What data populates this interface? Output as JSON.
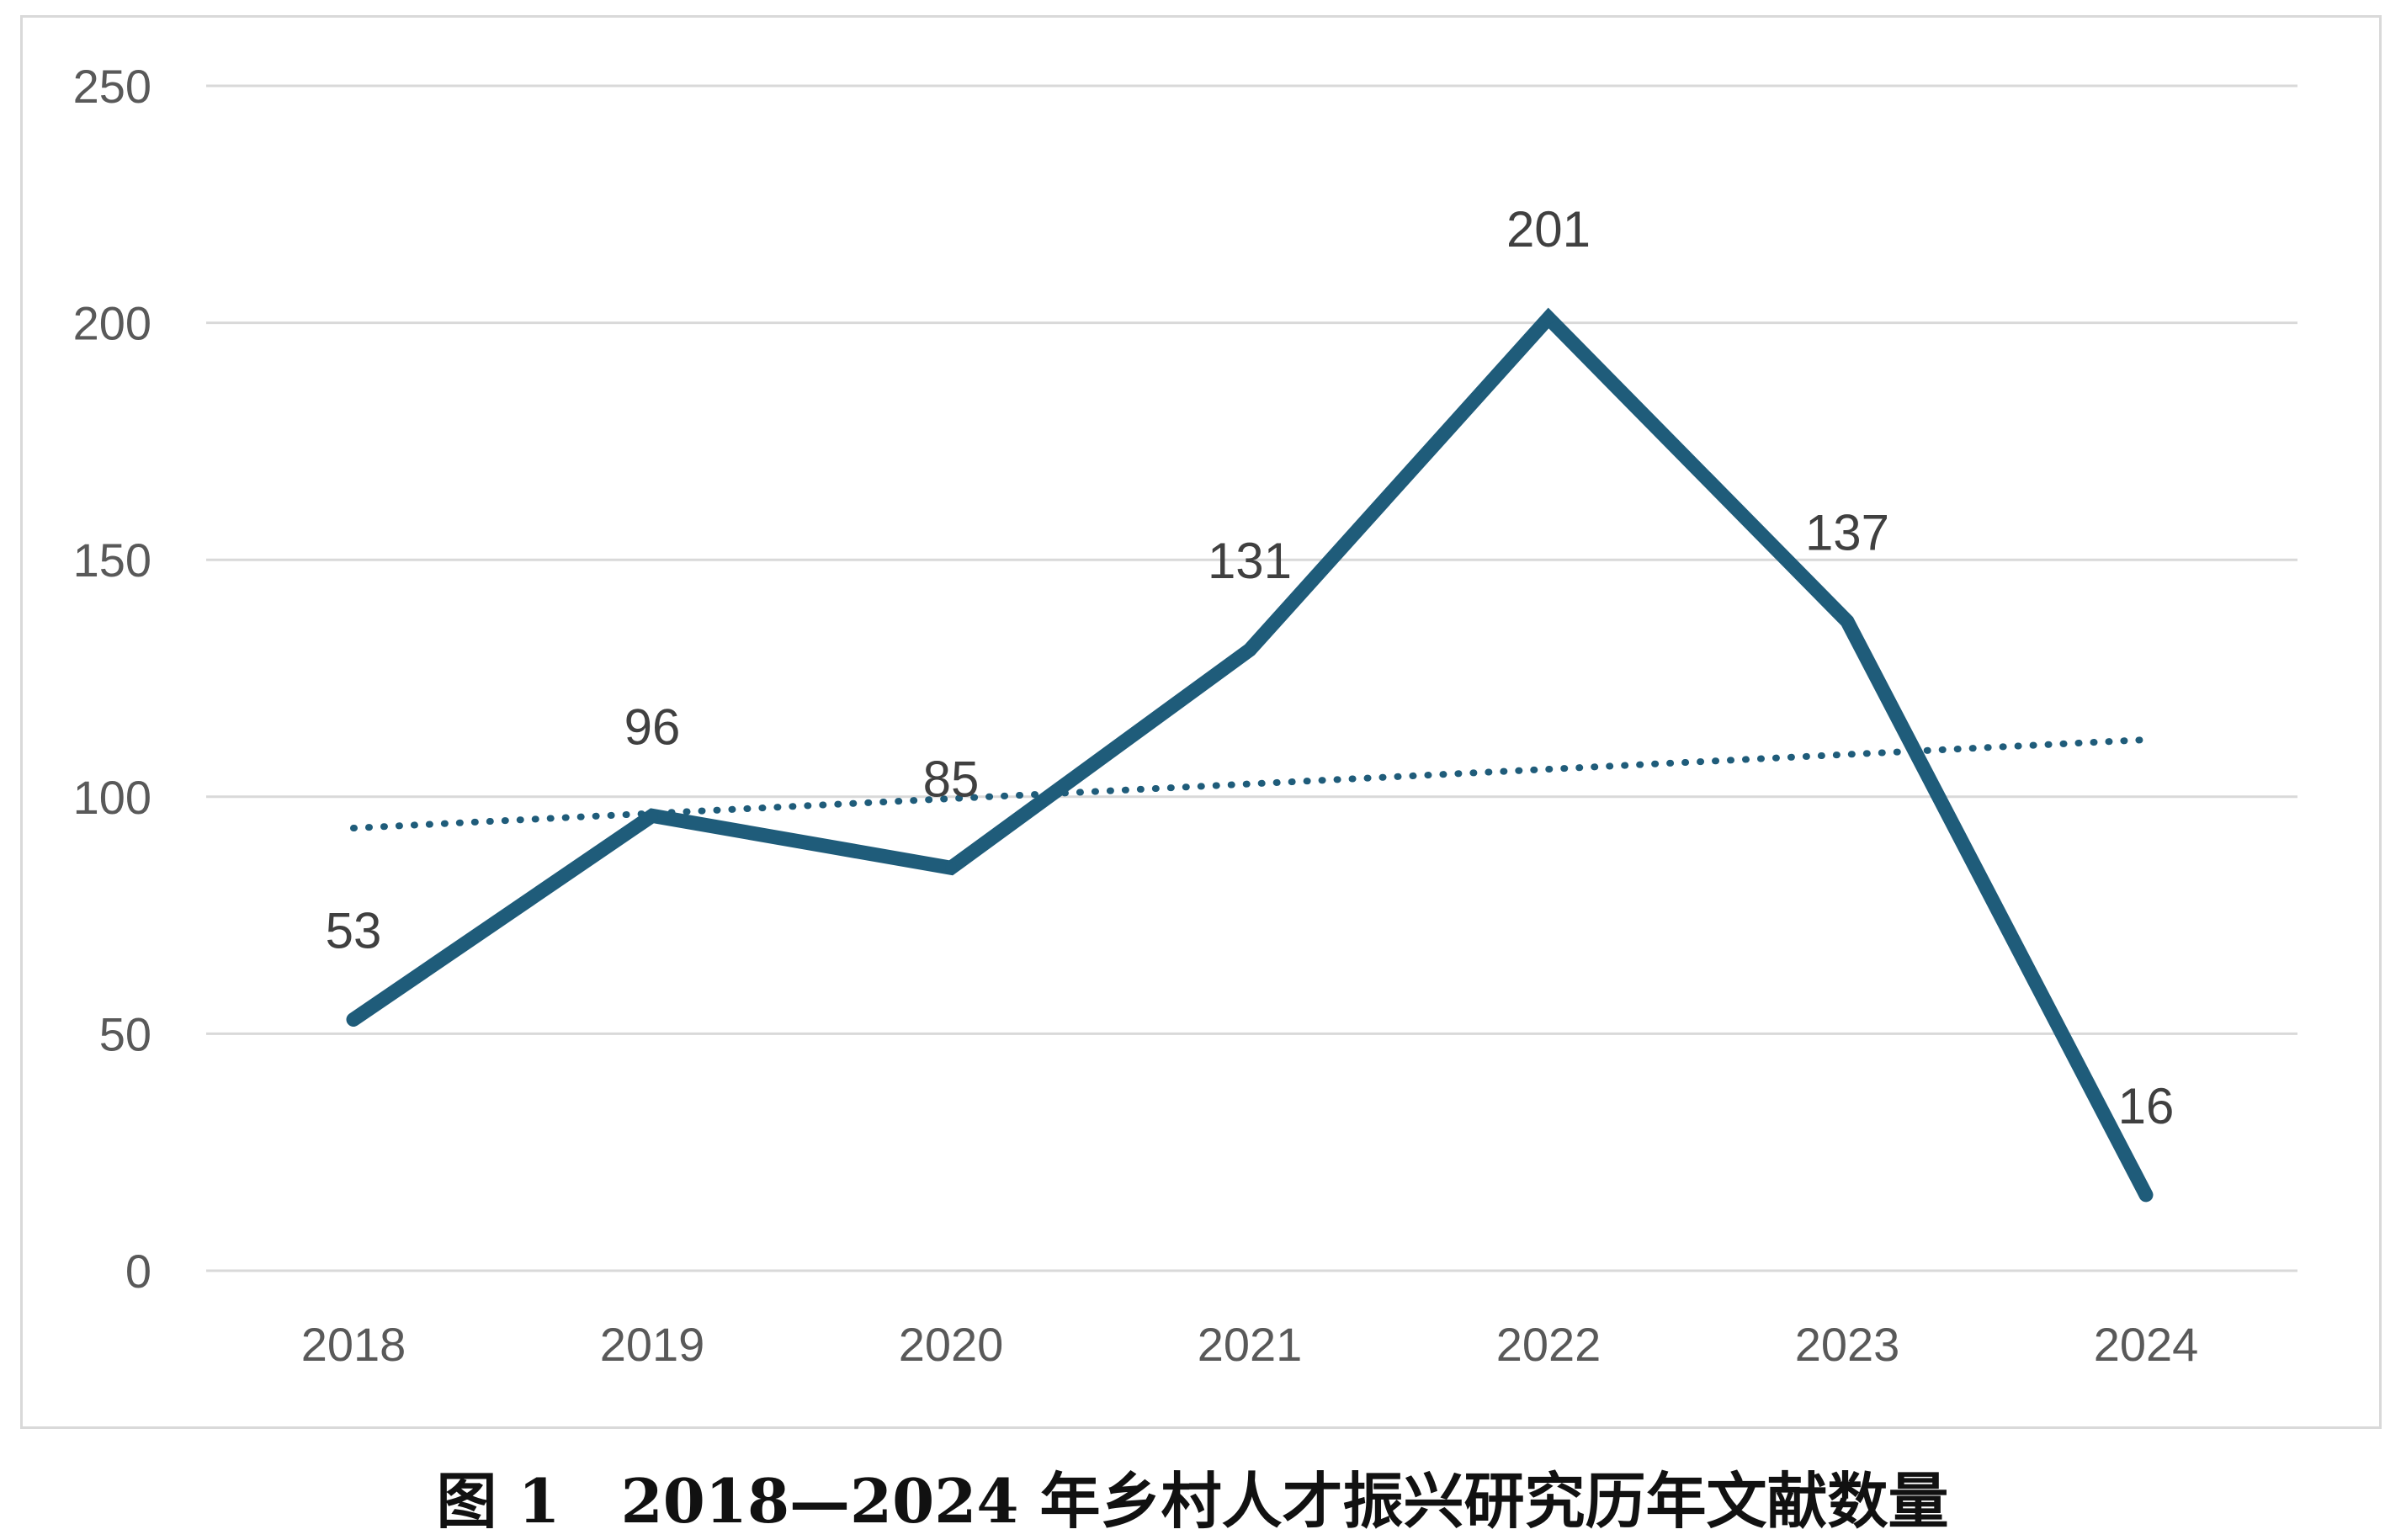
{
  "chart_data": {
    "type": "line",
    "categories": [
      "2018",
      "2019",
      "2020",
      "2021",
      "2022",
      "2023",
      "2024"
    ],
    "series": [
      {
        "values": [
          53,
          96,
          85,
          131,
          201,
          137,
          16
        ],
        "color": "#1f5c7a"
      }
    ],
    "data_labels": [
      "53",
      "96",
      "85",
      "131",
      "201",
      "137",
      "16"
    ],
    "trendline": {
      "type": "linear",
      "style": "dotted",
      "color": "#1f5c7a"
    },
    "ylim": [
      0,
      250
    ],
    "yticks": [
      0,
      50,
      100,
      150,
      200,
      250
    ],
    "ytick_labels": [
      "0",
      "50",
      "100",
      "150",
      "200",
      "250"
    ],
    "grid": true,
    "legend": "none"
  },
  "caption": "图 1　2018—2024 年乡村人才振兴研究历年文献数量"
}
